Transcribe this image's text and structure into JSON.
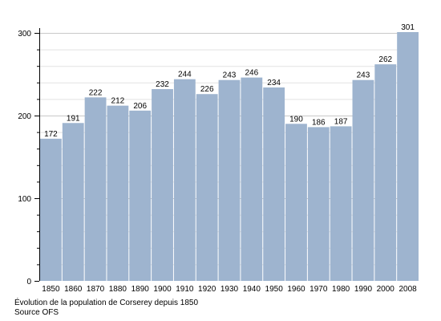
{
  "chart_data": {
    "type": "bar",
    "categories": [
      "1850",
      "1860",
      "1870",
      "1880",
      "1890",
      "1900",
      "1910",
      "1920",
      "1930",
      "1940",
      "1950",
      "1960",
      "1970",
      "1980",
      "1990",
      "2000",
      "2008"
    ],
    "values": [
      172,
      191,
      222,
      212,
      206,
      232,
      244,
      226,
      243,
      246,
      234,
      190,
      186,
      187,
      243,
      262,
      301
    ],
    "ylim": [
      0,
      300
    ],
    "yticks": [
      0,
      100,
      200,
      300
    ],
    "grid": true,
    "bar_color": "#9eb4cf",
    "grid_color": "#c8c8c8",
    "axis_color": "#000000"
  },
  "caption": {
    "line1": "Évolution de la population de Corserey depuis 1850",
    "line2": "Source OFS"
  }
}
